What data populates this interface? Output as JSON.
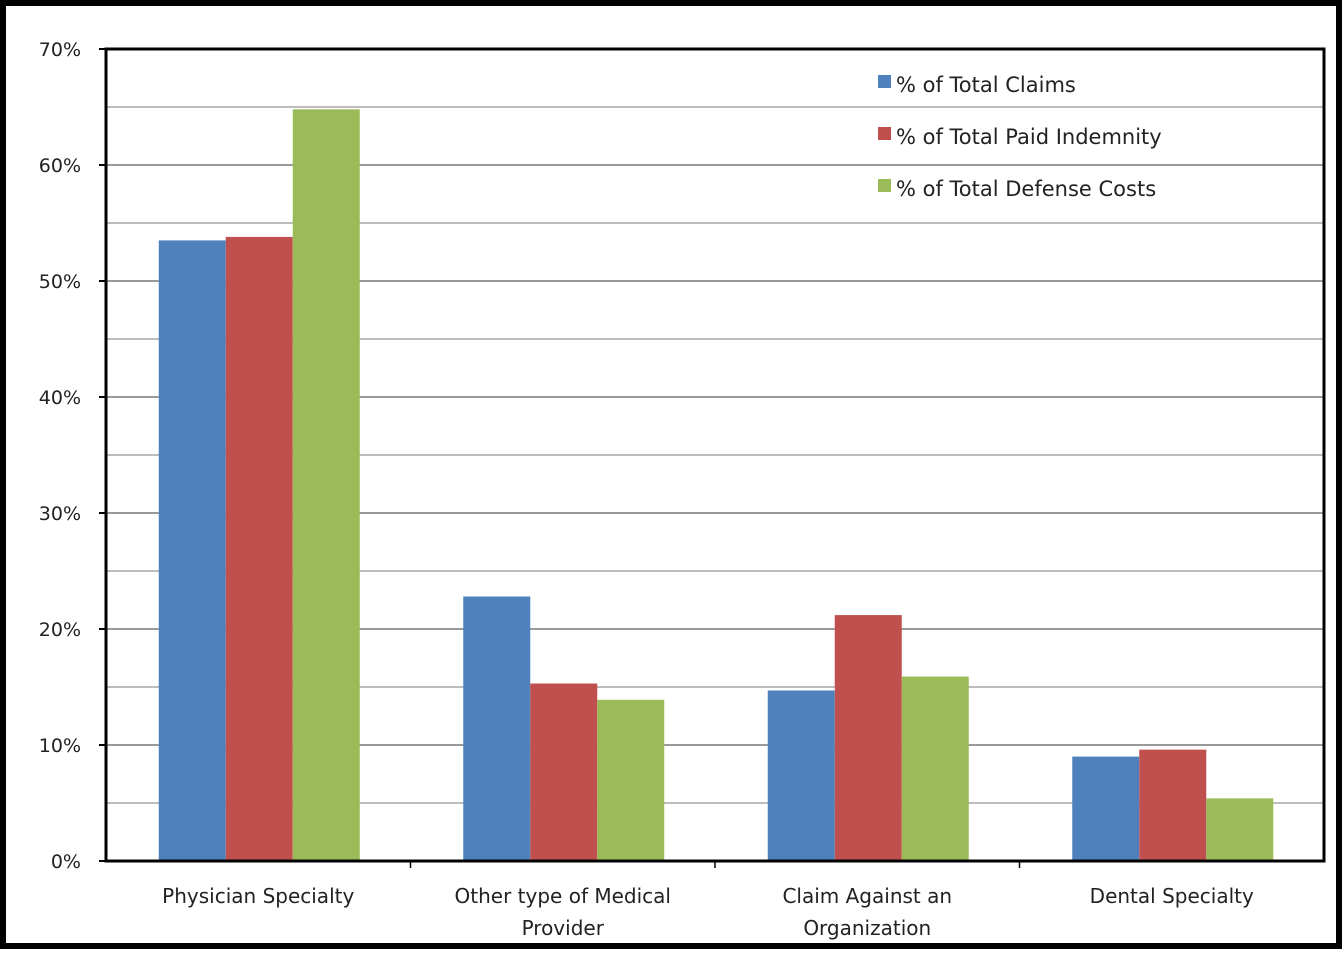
{
  "chart_data": {
    "type": "bar",
    "title": "",
    "xlabel": "",
    "ylabel": "",
    "categories": [
      [
        "Physician Specialty"
      ],
      [
        "Other type of Medical",
        "Provider"
      ],
      [
        "Claim Against an",
        "Organization"
      ],
      [
        "Dental Specialty"
      ]
    ],
    "series": [
      {
        "name": "% of Total Claims",
        "color": "#4f81bd",
        "values": [
          53.5,
          22.8,
          14.7,
          9.0
        ]
      },
      {
        "name": "% of Total Paid Indemnity",
        "color": "#c0504d",
        "values": [
          53.8,
          15.3,
          21.2,
          9.6
        ]
      },
      {
        "name": "% of Total Defense Costs",
        "color": "#9bbb59",
        "values": [
          64.8,
          13.9,
          15.9,
          5.4
        ]
      }
    ],
    "ylim": [
      0,
      70
    ],
    "yticks": [
      "0%",
      "10%",
      "20%",
      "30%",
      "40%",
      "50%",
      "60%",
      "70%"
    ],
    "y_tick_values": [
      0,
      10,
      20,
      30,
      40,
      50,
      60,
      70
    ],
    "minor_gridlines": [
      5,
      15,
      25,
      35,
      45,
      55,
      65
    ],
    "grid": true,
    "legend_position": "top-right"
  }
}
